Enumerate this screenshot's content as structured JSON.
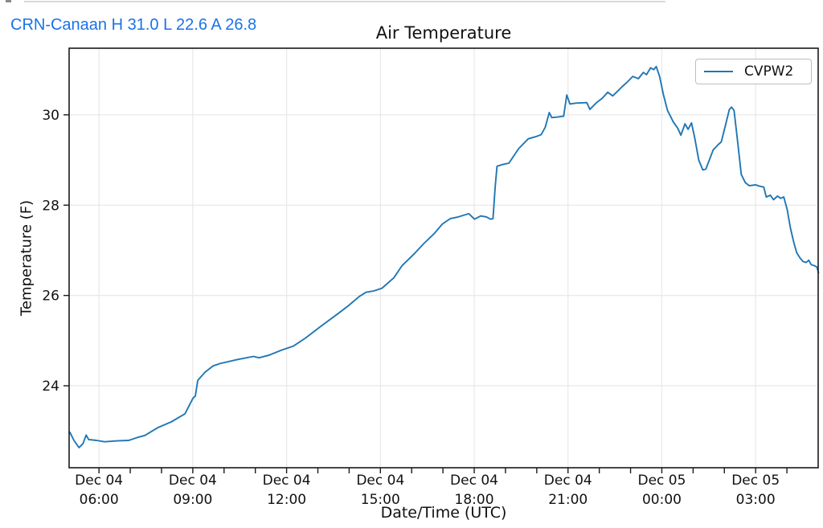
{
  "artifacts": {
    "top_border_color": "#d9d9d9"
  },
  "header": {
    "text": "CRN-Canaan H 31.0 L 22.6 A 26.8",
    "station": "CRN-Canaan",
    "high": "31.0",
    "low": "22.6",
    "average": "26.8",
    "color": "#1a73e8"
  },
  "chart_data": {
    "type": "line",
    "title": "Air Temperature",
    "xlabel": "Date/Time (UTC)",
    "ylabel": "Temperature (F)",
    "grid": true,
    "legend": {
      "position": "upper right",
      "entries": [
        "CVPW2"
      ]
    },
    "colors": {
      "line": "#1f77b4",
      "grid": "#e8e8e8",
      "spine": "#1a1a1a",
      "tick": "#1a1a1a"
    },
    "x_axis": {
      "unit": "hours since Dec 04 00:00 UTC",
      "range": [
        5.045,
        29.0
      ],
      "minor_tick_every_hours": 1,
      "major_ticks": [
        {
          "t": 6,
          "line1": "Dec 04",
          "line2": "06:00"
        },
        {
          "t": 9,
          "line1": "Dec 04",
          "line2": "09:00"
        },
        {
          "t": 12,
          "line1": "Dec 04",
          "line2": "12:00"
        },
        {
          "t": 15,
          "line1": "Dec 04",
          "line2": "15:00"
        },
        {
          "t": 18,
          "line1": "Dec 04",
          "line2": "18:00"
        },
        {
          "t": 21,
          "line1": "Dec 04",
          "line2": "21:00"
        },
        {
          "t": 24,
          "line1": "Dec 05",
          "line2": "00:00"
        },
        {
          "t": 27,
          "line1": "Dec 05",
          "line2": "03:00"
        }
      ]
    },
    "y_axis": {
      "range": [
        22.185,
        31.475
      ],
      "ticks": [
        24,
        26,
        28,
        30
      ]
    },
    "series": [
      {
        "name": "CVPW2",
        "points": [
          [
            5.07,
            22.97
          ],
          [
            5.2,
            22.79
          ],
          [
            5.36,
            22.63
          ],
          [
            5.49,
            22.72
          ],
          [
            5.59,
            22.91
          ],
          [
            5.67,
            22.81
          ],
          [
            5.92,
            22.79
          ],
          [
            6.18,
            22.76
          ],
          [
            6.57,
            22.78
          ],
          [
            6.95,
            22.79
          ],
          [
            7.21,
            22.85
          ],
          [
            7.47,
            22.9
          ],
          [
            7.9,
            23.08
          ],
          [
            8.31,
            23.2
          ],
          [
            8.75,
            23.38
          ],
          [
            9.01,
            23.73
          ],
          [
            9.08,
            23.77
          ],
          [
            9.16,
            24.12
          ],
          [
            9.39,
            24.3
          ],
          [
            9.65,
            24.44
          ],
          [
            9.86,
            24.49
          ],
          [
            10.42,
            24.58
          ],
          [
            10.94,
            24.65
          ],
          [
            11.12,
            24.62
          ],
          [
            11.45,
            24.68
          ],
          [
            11.84,
            24.79
          ],
          [
            12.22,
            24.88
          ],
          [
            12.61,
            25.06
          ],
          [
            13.12,
            25.33
          ],
          [
            13.63,
            25.59
          ],
          [
            13.97,
            25.77
          ],
          [
            14.33,
            25.98
          ],
          [
            14.54,
            26.07
          ],
          [
            14.79,
            26.1
          ],
          [
            15.05,
            26.16
          ],
          [
            15.43,
            26.39
          ],
          [
            15.69,
            26.66
          ],
          [
            16.08,
            26.92
          ],
          [
            16.39,
            27.15
          ],
          [
            16.72,
            27.37
          ],
          [
            16.98,
            27.58
          ],
          [
            17.23,
            27.7
          ],
          [
            17.49,
            27.74
          ],
          [
            17.83,
            27.81
          ],
          [
            18.01,
            27.69
          ],
          [
            18.21,
            27.76
          ],
          [
            18.39,
            27.74
          ],
          [
            18.52,
            27.69
          ],
          [
            18.6,
            27.7
          ],
          [
            18.67,
            28.4
          ],
          [
            18.73,
            28.86
          ],
          [
            18.91,
            28.9
          ],
          [
            19.11,
            28.93
          ],
          [
            19.42,
            29.25
          ],
          [
            19.73,
            29.47
          ],
          [
            19.98,
            29.52
          ],
          [
            20.14,
            29.56
          ],
          [
            20.27,
            29.72
          ],
          [
            20.4,
            30.05
          ],
          [
            20.48,
            29.94
          ],
          [
            20.65,
            29.95
          ],
          [
            20.86,
            29.97
          ],
          [
            20.96,
            30.44
          ],
          [
            21.06,
            30.24
          ],
          [
            21.25,
            30.26
          ],
          [
            21.6,
            30.27
          ],
          [
            21.7,
            30.12
          ],
          [
            21.91,
            30.27
          ],
          [
            22.1,
            30.37
          ],
          [
            22.27,
            30.5
          ],
          [
            22.43,
            30.42
          ],
          [
            22.58,
            30.52
          ],
          [
            22.74,
            30.63
          ],
          [
            22.9,
            30.73
          ],
          [
            23.07,
            30.85
          ],
          [
            23.25,
            30.8
          ],
          [
            23.41,
            30.94
          ],
          [
            23.51,
            30.89
          ],
          [
            23.64,
            31.04
          ],
          [
            23.74,
            31.0
          ],
          [
            23.82,
            31.07
          ],
          [
            23.93,
            30.85
          ],
          [
            24.05,
            30.45
          ],
          [
            24.18,
            30.1
          ],
          [
            24.36,
            29.85
          ],
          [
            24.51,
            29.7
          ],
          [
            24.61,
            29.55
          ],
          [
            24.74,
            29.8
          ],
          [
            24.84,
            29.68
          ],
          [
            24.95,
            29.82
          ],
          [
            25.05,
            29.5
          ],
          [
            25.18,
            29.0
          ],
          [
            25.31,
            28.78
          ],
          [
            25.41,
            28.8
          ],
          [
            25.64,
            29.22
          ],
          [
            25.8,
            29.34
          ],
          [
            25.9,
            29.4
          ],
          [
            26.03,
            29.75
          ],
          [
            26.16,
            30.12
          ],
          [
            26.23,
            30.17
          ],
          [
            26.31,
            30.1
          ],
          [
            26.41,
            29.5
          ],
          [
            26.54,
            28.68
          ],
          [
            26.67,
            28.5
          ],
          [
            26.8,
            28.43
          ],
          [
            27.0,
            28.45
          ],
          [
            27.13,
            28.42
          ],
          [
            27.26,
            28.4
          ],
          [
            27.34,
            28.18
          ],
          [
            27.47,
            28.22
          ],
          [
            27.57,
            28.12
          ],
          [
            27.7,
            28.2
          ],
          [
            27.8,
            28.15
          ],
          [
            27.9,
            28.18
          ],
          [
            28.01,
            27.9
          ],
          [
            28.11,
            27.5
          ],
          [
            28.21,
            27.2
          ],
          [
            28.31,
            26.95
          ],
          [
            28.42,
            26.83
          ],
          [
            28.52,
            26.75
          ],
          [
            28.62,
            26.73
          ],
          [
            28.7,
            26.78
          ],
          [
            28.78,
            26.68
          ],
          [
            28.88,
            26.66
          ],
          [
            28.96,
            26.63
          ],
          [
            29.01,
            26.5
          ]
        ]
      }
    ]
  }
}
